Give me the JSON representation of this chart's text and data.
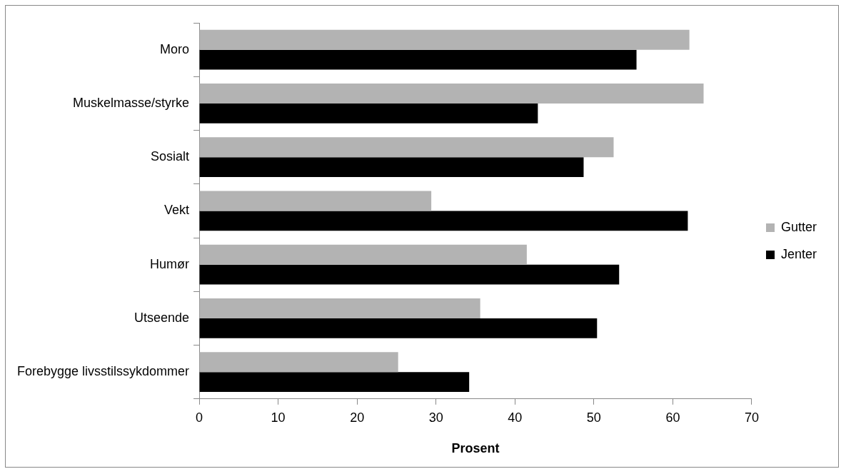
{
  "chart_data": {
    "type": "bar",
    "orientation": "horizontal",
    "xlabel": "Prosent",
    "categories": [
      "Moro",
      "Muskelmasse/styrke",
      "Sosialt",
      "Vekt",
      "Humør",
      "Utseende",
      "Forebygge livsstilssykdommer"
    ],
    "series": [
      {
        "name": "Gutter",
        "color": "#b3b3b3",
        "values": [
          62.1,
          63.9,
          52.5,
          29.4,
          41.5,
          35.6,
          25.2
        ]
      },
      {
        "name": "Jenter",
        "color": "#000000",
        "values": [
          55.4,
          42.9,
          48.7,
          61.9,
          53.2,
          50.4,
          34.2
        ]
      }
    ],
    "xlim": [
      0,
      70
    ],
    "xticks": [
      0,
      10,
      20,
      30,
      40,
      50,
      60,
      70
    ],
    "grid": false,
    "legend": "right"
  }
}
